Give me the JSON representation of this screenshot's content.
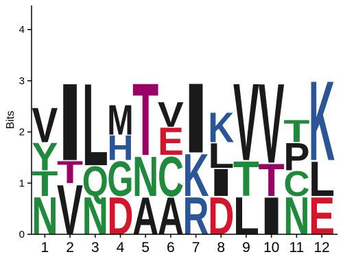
{
  "chart_data": {
    "type": "sequence-logo",
    "ylabel": "Bits",
    "ylim": [
      0,
      4.5
    ],
    "yticks": [
      "0",
      "1",
      "2",
      "3",
      "4"
    ],
    "xticks": [
      "1",
      "2",
      "3",
      "4",
      "5",
      "6",
      "7",
      "8",
      "9",
      "10",
      "11",
      "12"
    ],
    "colors": {
      "hydrophobic": "#1a1a1a",
      "polar": "#1f8a3c",
      "acidic": "#d4152b",
      "basic": "#2a5597",
      "neutral": "#990066"
    },
    "positions": [
      {
        "position": "1",
        "letters": [
          {
            "letter": "N",
            "bits": 0.75,
            "color": "#1f8a3c"
          },
          {
            "letter": "T",
            "bits": 0.5,
            "color": "#1f8a3c"
          },
          {
            "letter": "Y",
            "bits": 0.55,
            "color": "#1f8a3c"
          },
          {
            "letter": "V",
            "bits": 0.7,
            "color": "#1a1a1a"
          }
        ]
      },
      {
        "position": "2",
        "letters": [
          {
            "letter": "V",
            "bits": 1.0,
            "color": "#1a1a1a"
          },
          {
            "letter": "T",
            "bits": 0.45,
            "color": "#990066"
          },
          {
            "letter": "I",
            "bits": 1.55,
            "color": "#1a1a1a"
          }
        ]
      },
      {
        "position": "3",
        "letters": [
          {
            "letter": "N",
            "bits": 0.75,
            "color": "#1f8a3c"
          },
          {
            "letter": "Q",
            "bits": 0.6,
            "color": "#1f8a3c"
          },
          {
            "letter": "L",
            "bits": 1.65,
            "color": "#1a1a1a"
          }
        ]
      },
      {
        "position": "4",
        "letters": [
          {
            "letter": "D",
            "bits": 0.75,
            "color": "#d4152b"
          },
          {
            "letter": "G",
            "bits": 0.7,
            "color": "#1f8a3c"
          },
          {
            "letter": "H",
            "bits": 0.5,
            "color": "#2a5597"
          },
          {
            "letter": "M",
            "bits": 0.6,
            "color": "#1a1a1a"
          }
        ]
      },
      {
        "position": "5",
        "letters": [
          {
            "letter": "A",
            "bits": 0.75,
            "color": "#1a1a1a"
          },
          {
            "letter": "N",
            "bits": 0.8,
            "color": "#1f8a3c"
          },
          {
            "letter": "T",
            "bits": 1.45,
            "color": "#990066"
          }
        ]
      },
      {
        "position": "6",
        "letters": [
          {
            "letter": "A",
            "bits": 0.75,
            "color": "#1a1a1a"
          },
          {
            "letter": "C",
            "bits": 0.8,
            "color": "#1f8a3c"
          },
          {
            "letter": "E",
            "bits": 0.55,
            "color": "#d4152b"
          },
          {
            "letter": "V",
            "bits": 0.5,
            "color": "#1a1a1a"
          }
        ]
      },
      {
        "position": "7",
        "letters": [
          {
            "letter": "R",
            "bits": 0.75,
            "color": "#2a5597"
          },
          {
            "letter": "K",
            "bits": 0.85,
            "color": "#2a5597"
          },
          {
            "letter": "I",
            "bits": 1.4,
            "color": "#1a1a1a"
          }
        ]
      },
      {
        "position": "8",
        "letters": [
          {
            "letter": "D",
            "bits": 0.75,
            "color": "#d4152b"
          },
          {
            "letter": "I",
            "bits": 0.55,
            "color": "#1a1a1a"
          },
          {
            "letter": "L",
            "bits": 0.5,
            "color": "#1a1a1a"
          },
          {
            "letter": "K",
            "bits": 0.6,
            "color": "#2a5597"
          }
        ]
      },
      {
        "position": "9",
        "letters": [
          {
            "letter": "L",
            "bits": 0.75,
            "color": "#1a1a1a"
          },
          {
            "letter": "T",
            "bits": 0.7,
            "color": "#1f8a3c"
          },
          {
            "letter": "V",
            "bits": 1.55,
            "color": "#1a1a1a"
          }
        ]
      },
      {
        "position": "10",
        "letters": [
          {
            "letter": "I",
            "bits": 0.75,
            "color": "#1a1a1a"
          },
          {
            "letter": "T",
            "bits": 0.65,
            "color": "#990066"
          },
          {
            "letter": "V",
            "bits": 1.6,
            "color": "#1a1a1a"
          }
        ]
      },
      {
        "position": "11",
        "letters": [
          {
            "letter": "N",
            "bits": 0.75,
            "color": "#1f8a3c"
          },
          {
            "letter": "C",
            "bits": 0.5,
            "color": "#1f8a3c"
          },
          {
            "letter": "P",
            "bits": 0.55,
            "color": "#1a1a1a"
          },
          {
            "letter": "T",
            "bits": 0.45,
            "color": "#1f8a3c"
          }
        ]
      },
      {
        "position": "12",
        "letters": [
          {
            "letter": "E",
            "bits": 0.75,
            "color": "#d4152b"
          },
          {
            "letter": "L",
            "bits": 0.7,
            "color": "#1a1a1a"
          },
          {
            "letter": "K",
            "bits": 1.6,
            "color": "#2a5597"
          }
        ]
      }
    ]
  }
}
